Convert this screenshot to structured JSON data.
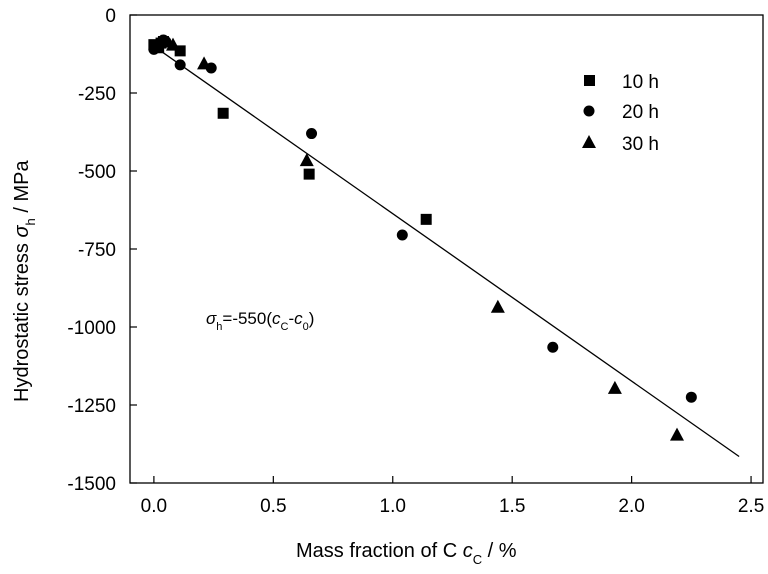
{
  "chart_data": {
    "type": "scatter",
    "xlabel": "Mass fraction of C",
    "xlabel_sym": "c",
    "xlabel_sub": "C",
    "xlabel_unit": " / %",
    "ylabel": "Hydrostatic stress",
    "ylabel_sym": "σ",
    "ylabel_sub": "h",
    "ylabel_unit": " / MPa",
    "xlim": [
      -0.1,
      2.55
    ],
    "ylim": [
      -1500,
      0
    ],
    "xticks": [
      0.0,
      0.5,
      1.0,
      1.5,
      2.0,
      2.5
    ],
    "xtick_labels": [
      "0.0",
      "0.5",
      "1.0",
      "1.5",
      "2.0",
      "2.5"
    ],
    "yticks": [
      0,
      -250,
      -500,
      -750,
      -1000,
      -1250,
      -1500
    ],
    "ytick_labels": [
      "0",
      "-250",
      "-500",
      "-750",
      "-1000",
      "-1250",
      "-1500"
    ],
    "grid": false,
    "legend_position": "top-right",
    "series": [
      {
        "name": "10 h",
        "marker": "square",
        "points": [
          [
            0.0,
            -95
          ],
          [
            0.02,
            -105
          ],
          [
            0.03,
            -90
          ],
          [
            0.04,
            -85
          ],
          [
            0.11,
            -115
          ],
          [
            0.29,
            -315
          ],
          [
            0.65,
            -510
          ],
          [
            1.14,
            -655
          ]
        ]
      },
      {
        "name": "20 h",
        "marker": "circle",
        "points": [
          [
            0.0,
            -110
          ],
          [
            0.04,
            -80
          ],
          [
            0.05,
            -85
          ],
          [
            0.11,
            -160
          ],
          [
            0.24,
            -170
          ],
          [
            0.66,
            -380
          ],
          [
            1.04,
            -705
          ],
          [
            1.67,
            -1065
          ],
          [
            2.25,
            -1225
          ]
        ]
      },
      {
        "name": "30 h",
        "marker": "triangle",
        "points": [
          [
            0.03,
            -85
          ],
          [
            0.08,
            -95
          ],
          [
            0.21,
            -155
          ],
          [
            0.64,
            -465
          ],
          [
            1.44,
            -935
          ],
          [
            1.93,
            -1195
          ],
          [
            2.19,
            -1345
          ]
        ]
      }
    ],
    "fit_line": {
      "points": [
        [
          0.0,
          -100
        ],
        [
          2.45,
          -1415
        ]
      ]
    },
    "annotation": {
      "sym": "σ",
      "sub1": "h",
      "mid": "=-550(",
      "c1": "c",
      "sub2": "C",
      "dash": "-",
      "c2": "c",
      "sub3": "0",
      "close": ")"
    },
    "colors": {
      "marker": "#000000",
      "line": "#000000",
      "axis": "#000000"
    }
  }
}
